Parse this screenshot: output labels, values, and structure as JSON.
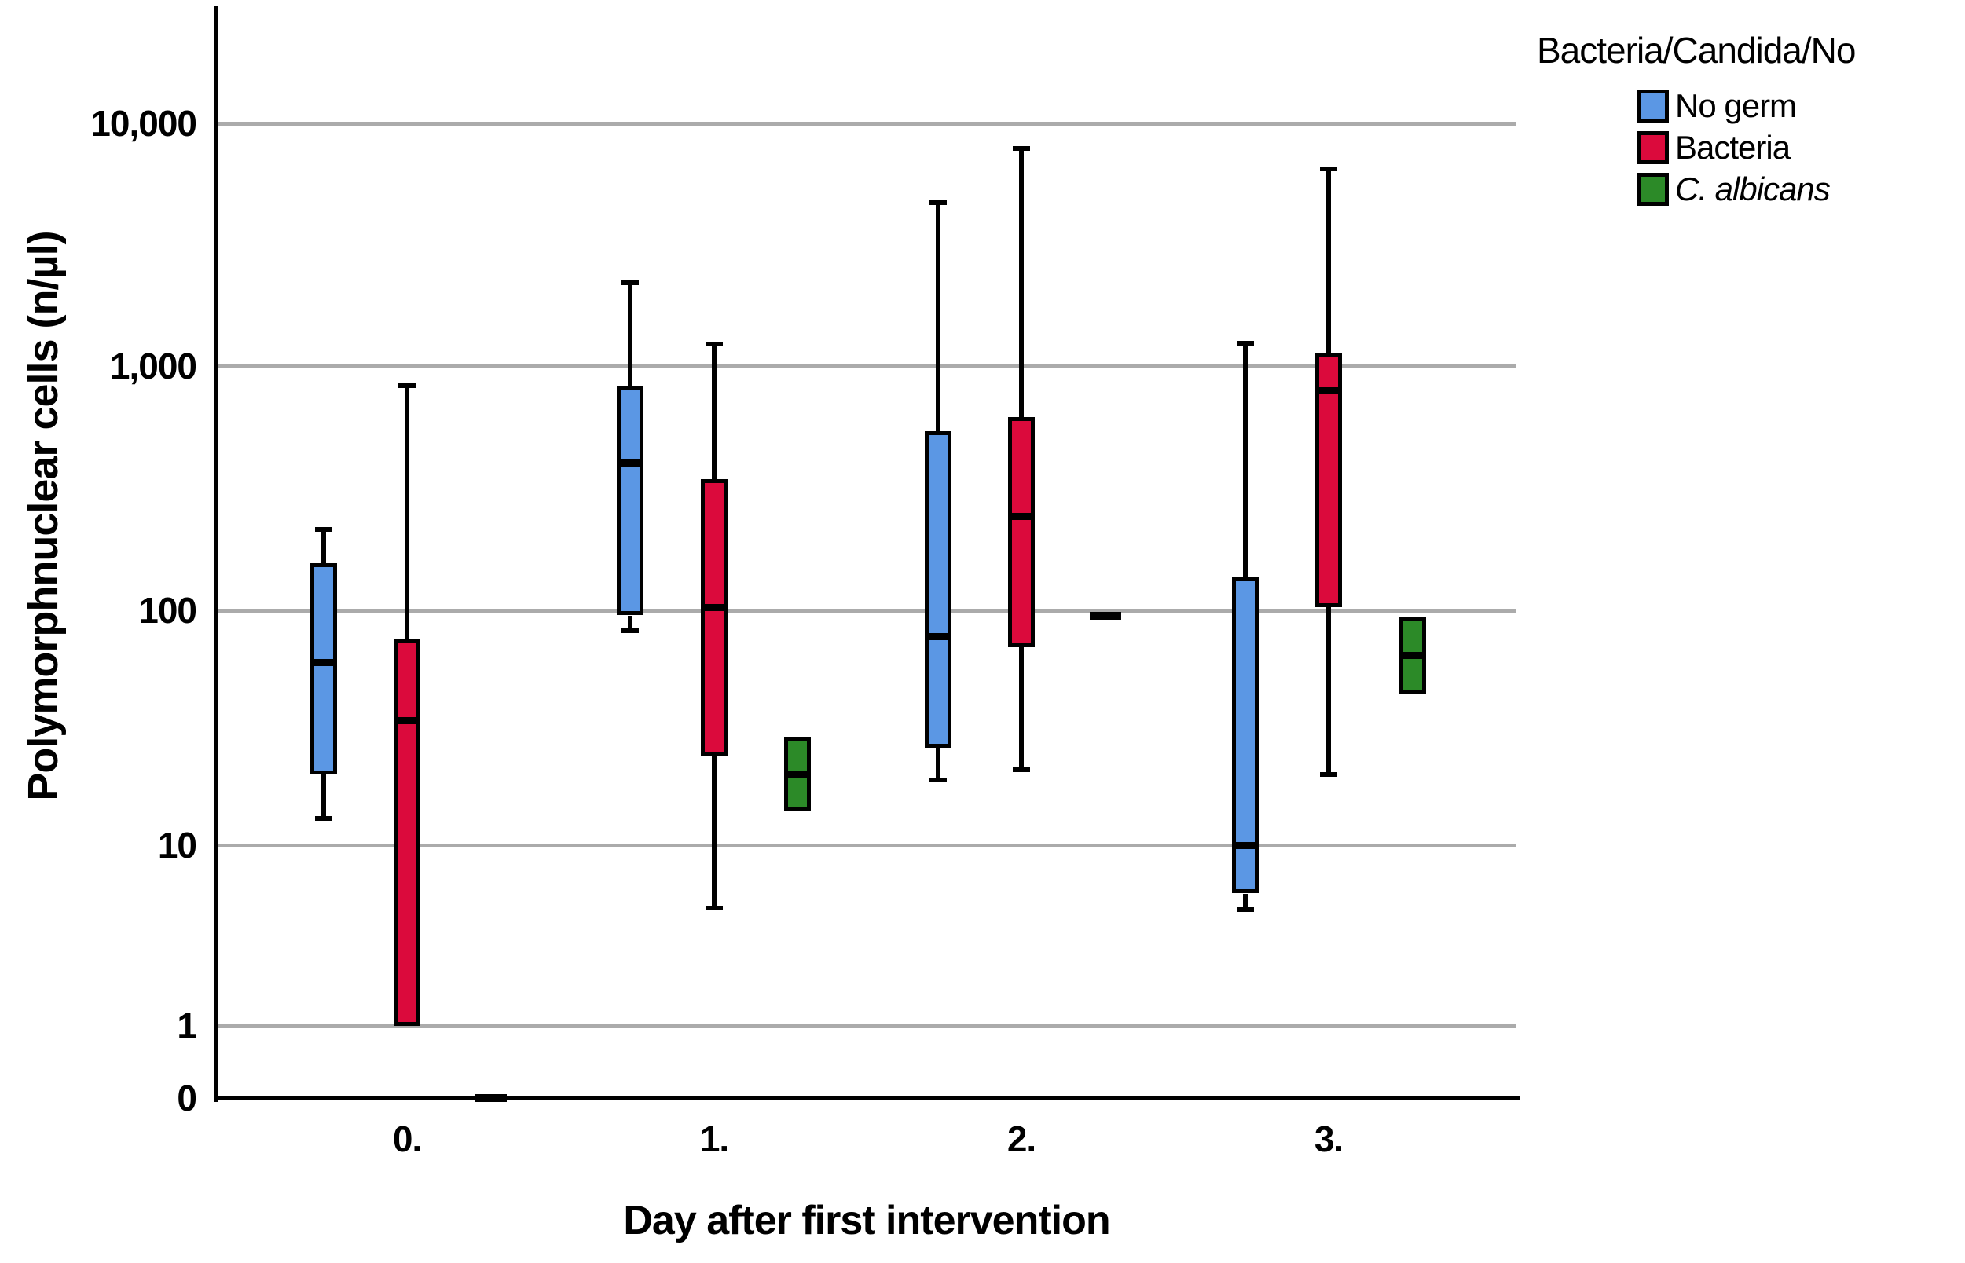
{
  "chart_data": {
    "type": "boxplot",
    "scale": "log",
    "grid": true,
    "xlabel": "Day after first intervention",
    "ylabel": "Polymorphnuclear cells (n/µl)",
    "categories": [
      "0.",
      "1.",
      "2.",
      "3."
    ],
    "y_ticks": {
      "labels": [
        "10,000",
        "1,000",
        "100",
        "10",
        "1",
        "0"
      ],
      "values": [
        10000,
        1000,
        100,
        10,
        1,
        0
      ]
    },
    "ylim": [
      0,
      20000
    ],
    "legend": {
      "title": "Bacteria/Candida/No",
      "position": "top-right",
      "items": [
        {
          "label": "No germ",
          "color": "#5B97E4",
          "italic": false
        },
        {
          "label": "Bacteria",
          "color": "#DB0A3C",
          "italic": false
        },
        {
          "label": "C. albicans",
          "color": "#2C8A28",
          "italic": true
        }
      ]
    },
    "series": [
      {
        "name": "No germ",
        "color": "#5B97E4",
        "boxes": [
          {
            "min": 13,
            "q1": 20,
            "median": 60,
            "q3": 156,
            "max": 215
          },
          {
            "min": 82,
            "q1": 95,
            "median": 400,
            "q3": 830,
            "max": 2200
          },
          {
            "min": 19,
            "q1": 26,
            "median": 77,
            "q3": 540,
            "max": 4700
          },
          {
            "min": 4.4,
            "q1": 5.4,
            "median": 10,
            "q3": 136,
            "max": 1240
          }
        ]
      },
      {
        "name": "Bacteria",
        "color": "#DB0A3C",
        "boxes": [
          {
            "min": 1,
            "q1": 1,
            "median": 34,
            "q3": 75,
            "max": 830
          },
          {
            "min": 4.5,
            "q1": 24,
            "median": 103,
            "q3": 345,
            "max": 1230
          },
          {
            "min": 21,
            "q1": 70,
            "median": 243,
            "q3": 620,
            "max": 7900
          },
          {
            "min": 20,
            "q1": 103,
            "median": 790,
            "q3": 1130,
            "max": 6500
          }
        ]
      },
      {
        "name": "C. albicans",
        "color": "#2C8A28",
        "boxes": [
          {
            "flat": 0
          },
          {
            "min": 14,
            "q1": 14,
            "median": 20,
            "q3": 29,
            "max": 29
          },
          {
            "flat": 95
          },
          {
            "min": 44,
            "q1": 44,
            "median": 64,
            "q3": 94,
            "max": 94
          }
        ]
      }
    ]
  }
}
